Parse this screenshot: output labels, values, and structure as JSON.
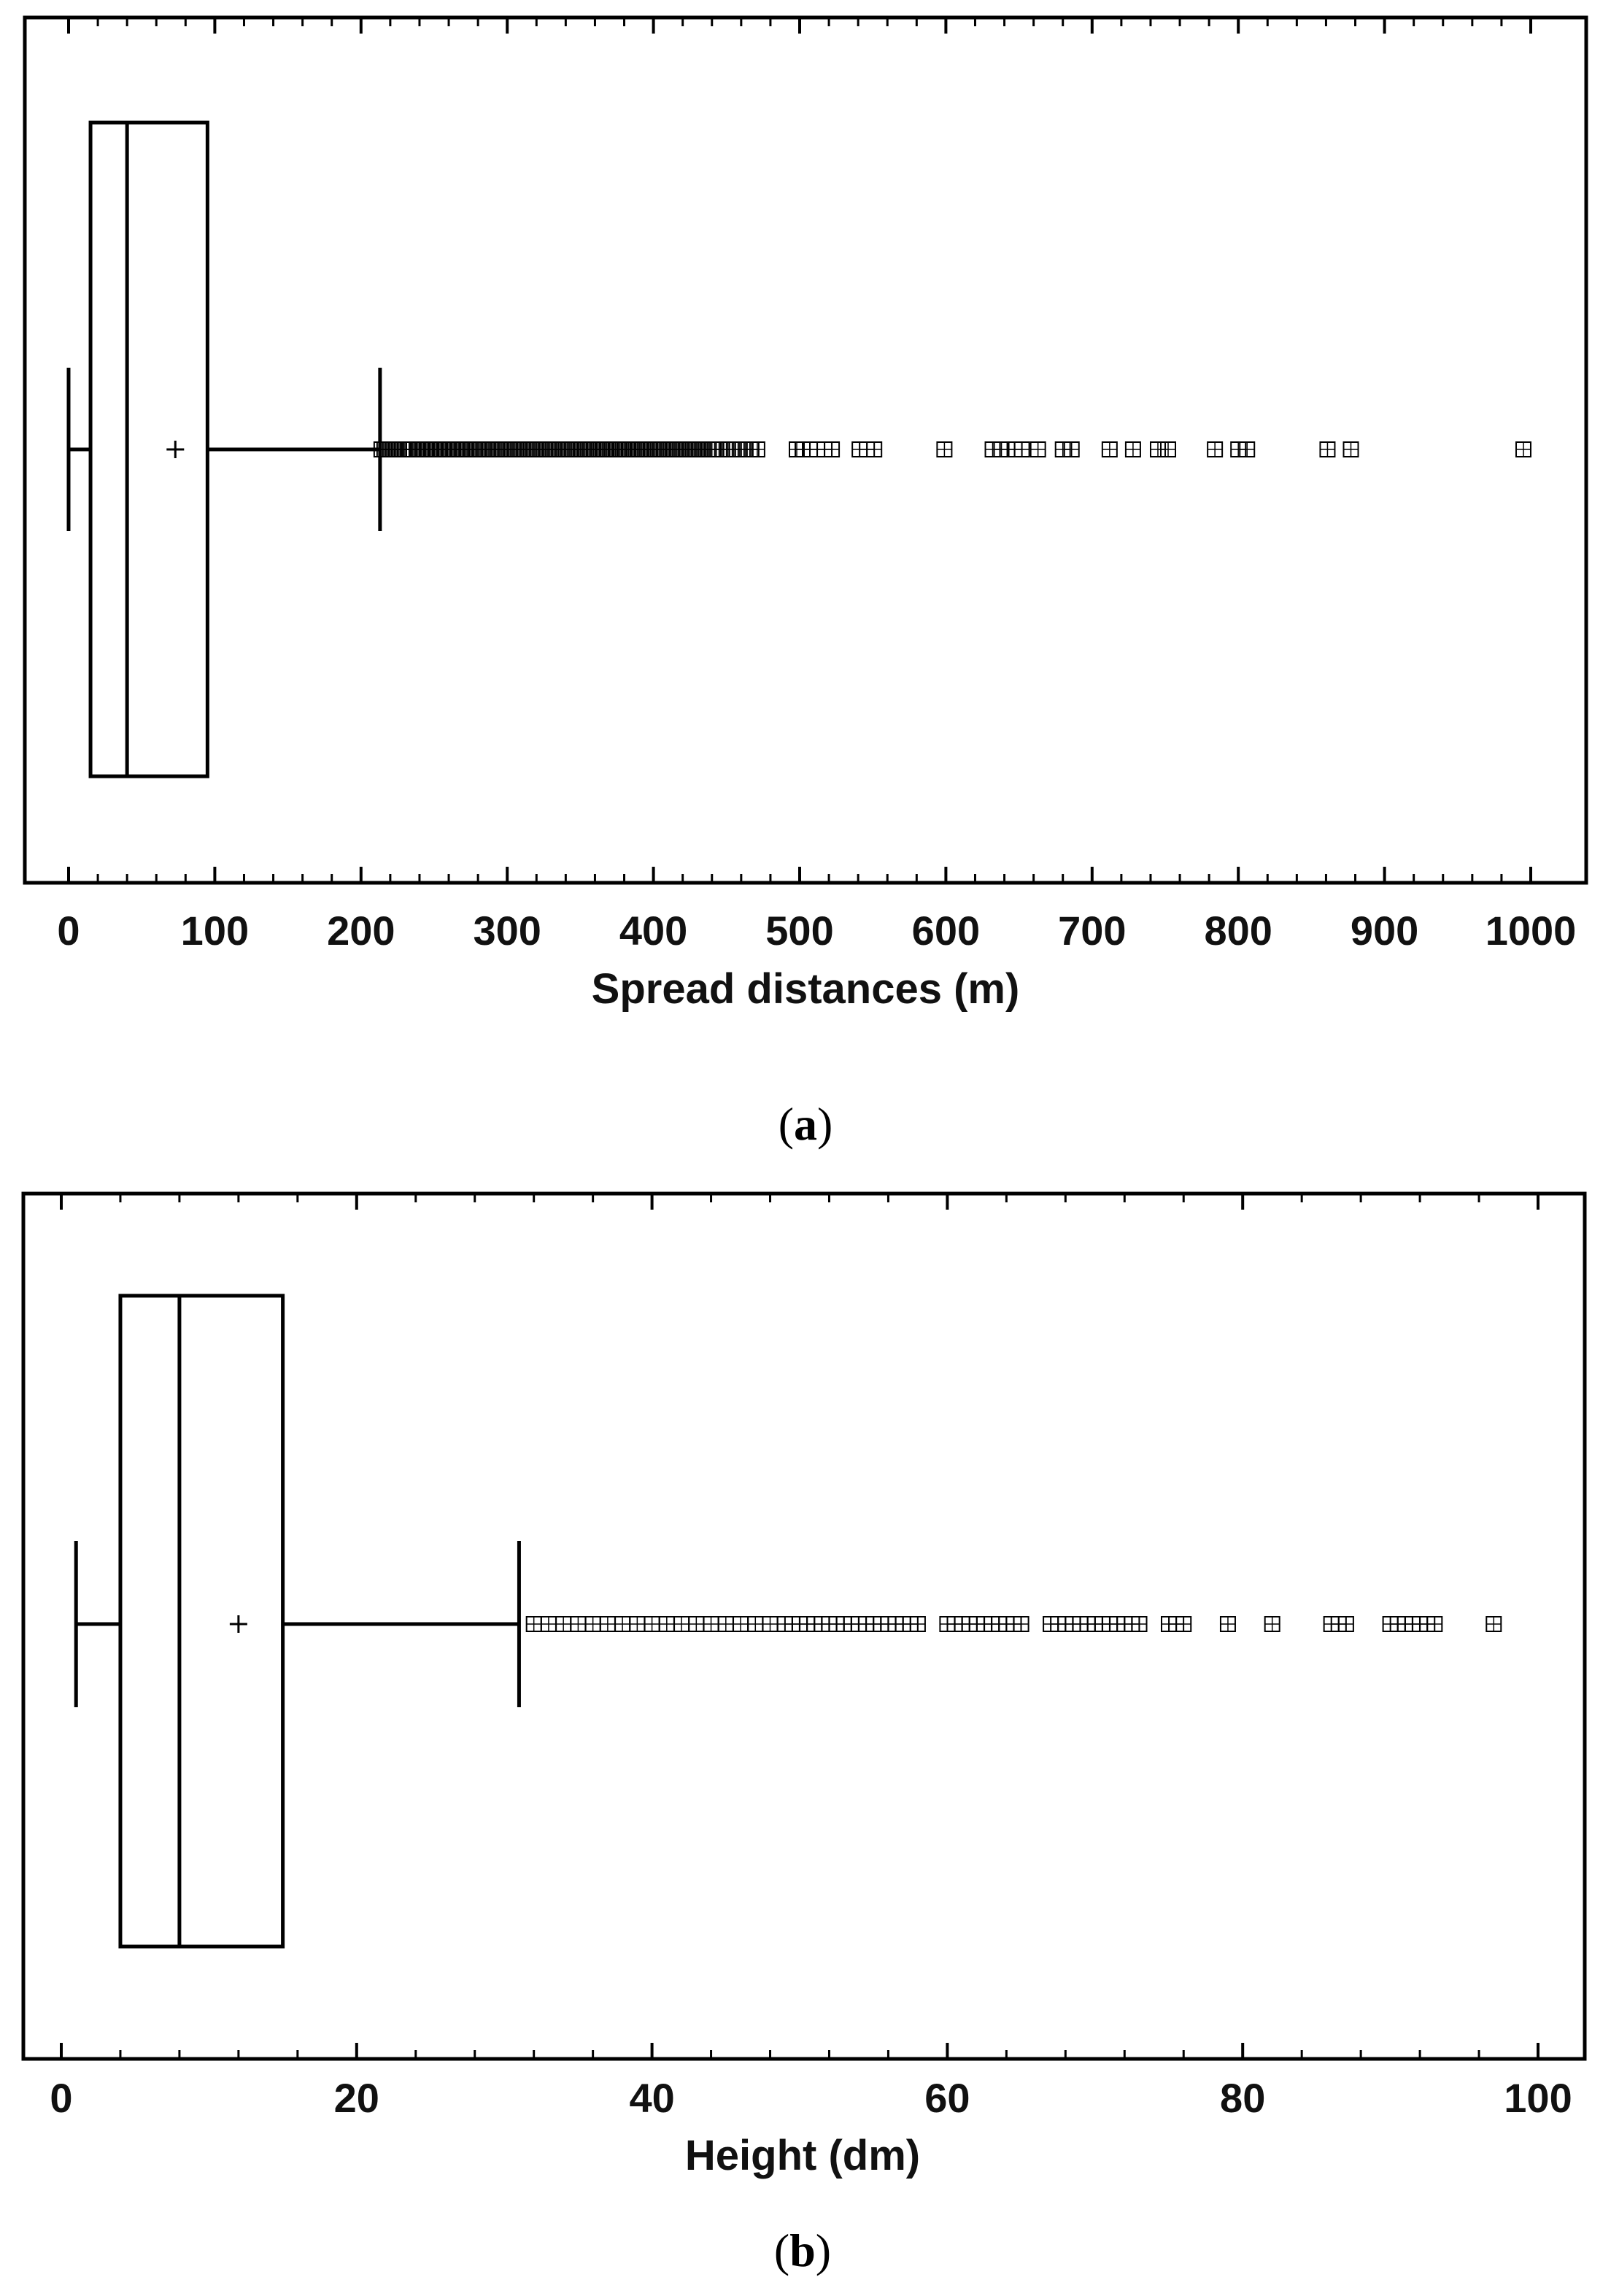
{
  "chart_data": [
    {
      "type": "boxplot",
      "panel_label": "(a)",
      "panel_letter": "a",
      "xlabel": "Spread distances (m)",
      "xlim": [
        0,
        1000
      ],
      "xticks": [
        "0",
        "100",
        "200",
        "300",
        "400",
        "500",
        "600",
        "700",
        "800",
        "900",
        "1000"
      ],
      "box": {
        "whisker_low": 0,
        "q1": 15,
        "median": 40,
        "q3": 95,
        "whisker_high": 213,
        "mean": 73
      },
      "outliers": [
        214,
        216,
        218,
        220,
        222,
        224,
        226,
        228,
        230,
        233,
        236,
        239,
        242,
        245,
        248,
        251,
        254,
        257,
        260,
        263,
        266,
        269,
        272,
        275,
        278,
        281,
        284,
        287,
        290,
        293,
        296,
        299,
        302,
        305,
        308,
        311,
        314,
        317,
        320,
        323,
        326,
        329,
        332,
        335,
        338,
        341,
        344,
        347,
        350,
        353,
        356,
        359,
        362,
        365,
        368,
        371,
        374,
        377,
        380,
        383,
        386,
        389,
        392,
        395,
        398,
        401,
        404,
        407,
        410,
        413,
        416,
        419,
        422,
        425,
        428,
        431,
        434,
        437,
        440,
        443,
        447,
        451,
        455,
        459,
        463,
        467,
        471,
        498,
        502,
        507,
        512,
        517,
        522,
        541,
        546,
        551,
        599,
        632,
        638,
        642,
        647,
        652,
        663,
        680,
        686,
        712,
        728,
        745,
        752,
        784,
        800,
        806,
        861,
        877,
        995
      ]
    },
    {
      "type": "boxplot",
      "panel_label": "(b)",
      "panel_letter": "b",
      "xlabel": "Height (dm)",
      "xlim": [
        0,
        100
      ],
      "xticks": [
        "0",
        "20",
        "40",
        "60",
        "80",
        "100"
      ],
      "box": {
        "whisker_low": 1,
        "q1": 4,
        "median": 8,
        "q3": 15,
        "whisker_high": 31,
        "mean": 12
      },
      "outliers": [
        32,
        33,
        34,
        35,
        36,
        37,
        38,
        39,
        40,
        41,
        42,
        43,
        44,
        45,
        46,
        47,
        48,
        49,
        49.5,
        50,
        50.5,
        51,
        51.5,
        52,
        52.5,
        53,
        53.5,
        54,
        54.5,
        55,
        55.5,
        56,
        56.5,
        57,
        57.5,
        58,
        60,
        60.5,
        61,
        61.5,
        62,
        62.5,
        63,
        63.5,
        64,
        64.5,
        65,
        67,
        67.5,
        68,
        68.5,
        69,
        69.5,
        70,
        70.5,
        71,
        71.5,
        72,
        72.5,
        73,
        75,
        75.5,
        76,
        79,
        82,
        86,
        86.5,
        87,
        90,
        90.5,
        91,
        91.5,
        92,
        92.5,
        93,
        97
      ]
    }
  ]
}
